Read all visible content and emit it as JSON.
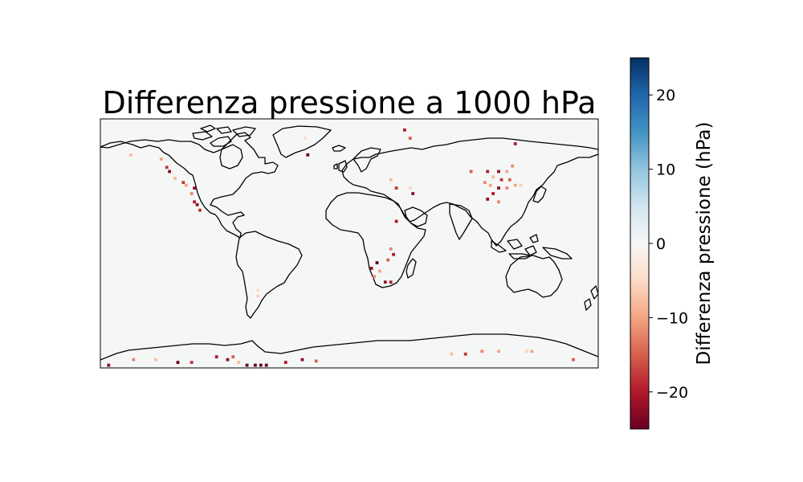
{
  "title": "Differenza pressione a 1000 hPa",
  "colorbar": {
    "label": "Differenza pressione (hPa)",
    "range": [
      -25,
      25
    ],
    "colormap": "RdBu",
    "ticks": [
      {
        "value": 20,
        "label": "20"
      },
      {
        "value": 10,
        "label": "10"
      },
      {
        "value": 0,
        "label": "0"
      },
      {
        "value": -10,
        "label": "−10"
      },
      {
        "value": -20,
        "label": "−20"
      }
    ],
    "stops": [
      "#67001f",
      "#b2182b",
      "#d6604d",
      "#f4a582",
      "#fddbc7",
      "#f7f7f7",
      "#d1e5f0",
      "#92c5de",
      "#4393c3",
      "#2166ac",
      "#053061"
    ]
  },
  "map": {
    "projection": "PlateCarree",
    "extent": {
      "lon": [
        -180,
        180
      ],
      "lat": [
        -90,
        90
      ]
    },
    "background_color": "#f5f7f7",
    "coastline_color": "#000000"
  },
  "chart_data": {
    "type": "heatmap",
    "title": "Differenza pressione a 1000 hPa",
    "colorbar_label": "Differenza pressione (hPa)",
    "vmin": -25,
    "vmax": 25,
    "x_units": "degrees longitude",
    "y_units": "degrees latitude",
    "cells": [
      {
        "lon": 40,
        "lat": 82,
        "value": -20
      },
      {
        "lon": 44,
        "lat": 76,
        "value": -15
      },
      {
        "lon": -32,
        "lat": 76,
        "value": -5
      },
      {
        "lon": -30,
        "lat": 64,
        "value": -25
      },
      {
        "lon": -158,
        "lat": 64,
        "value": -8
      },
      {
        "lon": -136,
        "lat": 61,
        "value": -10
      },
      {
        "lon": -132,
        "lat": 55,
        "value": -18
      },
      {
        "lon": -130,
        "lat": 52,
        "value": -22
      },
      {
        "lon": -126,
        "lat": 47,
        "value": -8
      },
      {
        "lon": -120,
        "lat": 44,
        "value": -18
      },
      {
        "lon": -118,
        "lat": 42,
        "value": -10
      },
      {
        "lon": -112,
        "lat": 40,
        "value": -22
      },
      {
        "lon": -114,
        "lat": 36,
        "value": -12
      },
      {
        "lon": -112,
        "lat": 30,
        "value": -20
      },
      {
        "lon": -110,
        "lat": 28,
        "value": -22
      },
      {
        "lon": -108,
        "lat": 24,
        "value": -18
      },
      {
        "lon": 120,
        "lat": 72,
        "value": -20
      },
      {
        "lon": 88,
        "lat": 52,
        "value": -15
      },
      {
        "lon": 100,
        "lat": 52,
        "value": -20
      },
      {
        "lon": 108,
        "lat": 52,
        "value": -22
      },
      {
        "lon": 114,
        "lat": 52,
        "value": -10
      },
      {
        "lon": 118,
        "lat": 56,
        "value": -12
      },
      {
        "lon": 104,
        "lat": 48,
        "value": -8
      },
      {
        "lon": 110,
        "lat": 46,
        "value": -18
      },
      {
        "lon": 116,
        "lat": 46,
        "value": -15
      },
      {
        "lon": 98,
        "lat": 44,
        "value": -12
      },
      {
        "lon": 102,
        "lat": 42,
        "value": -10
      },
      {
        "lon": 108,
        "lat": 40,
        "value": -22
      },
      {
        "lon": 114,
        "lat": 40,
        "value": -12
      },
      {
        "lon": 120,
        "lat": 42,
        "value": -10
      },
      {
        "lon": 124,
        "lat": 42,
        "value": -6
      },
      {
        "lon": 104,
        "lat": 36,
        "value": -20
      },
      {
        "lon": 100,
        "lat": 32,
        "value": -22
      },
      {
        "lon": 108,
        "lat": 30,
        "value": -12
      },
      {
        "lon": 30,
        "lat": 46,
        "value": -8
      },
      {
        "lon": 34,
        "lat": 40,
        "value": -18
      },
      {
        "lon": 44,
        "lat": 40,
        "value": -6
      },
      {
        "lon": 46,
        "lat": 36,
        "value": -22
      },
      {
        "lon": 34,
        "lat": 16,
        "value": -20
      },
      {
        "lon": 30,
        "lat": -4,
        "value": -12
      },
      {
        "lon": 32,
        "lat": -8,
        "value": -20
      },
      {
        "lon": 28,
        "lat": -12,
        "value": -15
      },
      {
        "lon": 20,
        "lat": -14,
        "value": -25
      },
      {
        "lon": 16,
        "lat": -18,
        "value": -22
      },
      {
        "lon": 22,
        "lat": -20,
        "value": -10
      },
      {
        "lon": 18,
        "lat": -24,
        "value": -12
      },
      {
        "lon": 26,
        "lat": -28,
        "value": -22
      },
      {
        "lon": 30,
        "lat": -28,
        "value": -20
      },
      {
        "lon": -66,
        "lat": -34,
        "value": -5
      },
      {
        "lon": -66,
        "lat": -38,
        "value": -6
      },
      {
        "lon": -174,
        "lat": -88,
        "value": -22
      },
      {
        "lon": -156,
        "lat": -84,
        "value": -12
      },
      {
        "lon": -140,
        "lat": -84,
        "value": -8
      },
      {
        "lon": -124,
        "lat": -86,
        "value": -25
      },
      {
        "lon": -114,
        "lat": -86,
        "value": -18
      },
      {
        "lon": -96,
        "lat": -82,
        "value": -20
      },
      {
        "lon": -88,
        "lat": -84,
        "value": -22
      },
      {
        "lon": -84,
        "lat": -82,
        "value": -15
      },
      {
        "lon": -80,
        "lat": -86,
        "value": -8
      },
      {
        "lon": -74,
        "lat": -88,
        "value": -25
      },
      {
        "lon": -68,
        "lat": -88,
        "value": -25
      },
      {
        "lon": -64,
        "lat": -88,
        "value": -25
      },
      {
        "lon": -60,
        "lat": -88,
        "value": -25
      },
      {
        "lon": -46,
        "lat": -86,
        "value": -20
      },
      {
        "lon": -34,
        "lat": -84,
        "value": -22
      },
      {
        "lon": -24,
        "lat": -85,
        "value": -15
      },
      {
        "lon": 74,
        "lat": -80,
        "value": -8
      },
      {
        "lon": 84,
        "lat": -80,
        "value": -18
      },
      {
        "lon": 96,
        "lat": -78,
        "value": -12
      },
      {
        "lon": 108,
        "lat": -78,
        "value": -10
      },
      {
        "lon": 128,
        "lat": -78,
        "value": -6
      },
      {
        "lon": 132,
        "lat": -78,
        "value": -10
      },
      {
        "lon": 162,
        "lat": -84,
        "value": -15
      }
    ]
  }
}
